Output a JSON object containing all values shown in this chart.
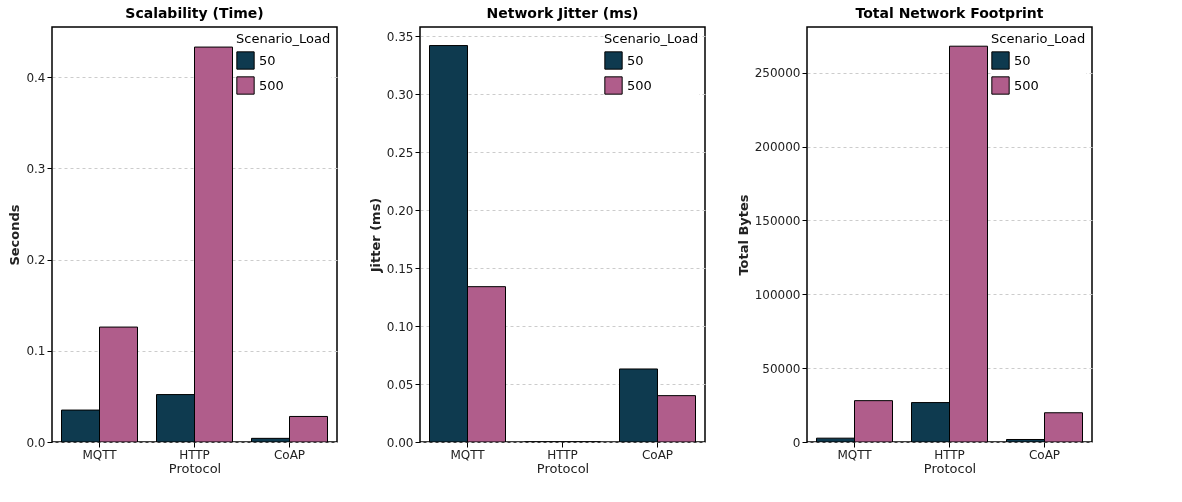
{
  "chart_data": [
    {
      "type": "bar",
      "title": "Scalability (Time)",
      "xlabel": "Protocol",
      "ylabel": "Seconds",
      "legend_title": "Scenario_Load",
      "legend": "top right",
      "grid": "y",
      "categories": [
        "MQTT",
        "HTTP",
        "CoAP"
      ],
      "series": [
        {
          "name": "50",
          "color": "#0e3a4f",
          "values": [
            0.035,
            0.052,
            0.004
          ]
        },
        {
          "name": "500",
          "color": "#b05d8b",
          "values": [
            0.126,
            0.433,
            0.028
          ]
        }
      ],
      "ylim": [
        0,
        0.455
      ],
      "yticks": [
        {
          "value": 0,
          "label": "0.0"
        },
        0.1,
        0.2,
        0.3,
        0.4
      ]
    },
    {
      "type": "bar",
      "title": "Network Jitter (ms)",
      "xlabel": "Protocol",
      "ylabel": "Jitter (ms)",
      "legend_title": "Scenario_Load",
      "legend": "top right",
      "grid": "y",
      "categories": [
        "MQTT",
        "HTTP",
        "CoAP"
      ],
      "series": [
        {
          "name": "50",
          "color": "#0e3a4f",
          "values": [
            0.342,
            0,
            0.063
          ]
        },
        {
          "name": "500",
          "color": "#b05d8b",
          "values": [
            0.134,
            0,
            0.04
          ]
        }
      ],
      "ylim": [
        0,
        0.358
      ],
      "yticks": [
        {
          "value": 0,
          "label": "0.00"
        },
        0.05,
        {
          "value": 0.1,
          "label": "0.10"
        },
        0.15,
        {
          "value": 0.2,
          "label": "0.20"
        },
        0.25,
        {
          "value": 0.3,
          "label": "0.30"
        },
        0.35
      ]
    },
    {
      "type": "bar",
      "title": "Total Network Footprint",
      "xlabel": "Protocol",
      "ylabel": "Total Bytes",
      "legend_title": "Scenario_Load",
      "legend": "top right",
      "grid": "y",
      "categories": [
        "MQTT",
        "HTTP",
        "CoAP"
      ],
      "series": [
        {
          "name": "50",
          "color": "#0e3a4f",
          "values": [
            2600,
            26700,
            1700
          ]
        },
        {
          "name": "500",
          "color": "#b05d8b",
          "values": [
            28000,
            268000,
            19800
          ]
        }
      ],
      "ylim": [
        0,
        281000
      ],
      "yticks": [
        0,
        50000,
        100000,
        150000,
        200000,
        250000
      ]
    }
  ]
}
